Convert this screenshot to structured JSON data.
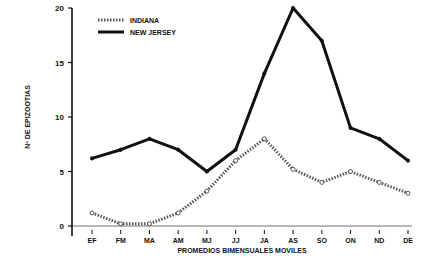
{
  "chart_data": {
    "type": "line",
    "x_label": "PROMEDIOS BIMENSUALES MOVILES",
    "y_label": "Nº DE EPIZOOTIAS",
    "categories": [
      "EF",
      "FM",
      "MA",
      "AM",
      "MJ",
      "JJ",
      "JA",
      "AS",
      "SO",
      "ON",
      "ND",
      "DE"
    ],
    "series": [
      {
        "name": "INDIANA",
        "color": "#555555",
        "line_style": "dotted",
        "marker": "circle",
        "values": [
          1.2,
          0.2,
          0.2,
          1.2,
          3.2,
          6,
          8,
          5.2,
          4,
          5,
          4,
          3
        ]
      },
      {
        "name": "NEW JERSEY",
        "color": "#111111",
        "line_style": "solid",
        "marker": "circle",
        "values": [
          6.2,
          7,
          8,
          7,
          5,
          7,
          14,
          20,
          17,
          9,
          8,
          6
        ]
      }
    ],
    "ylim": [
      0,
      20
    ],
    "yticks": [
      0,
      5,
      10,
      15,
      20
    ],
    "grid": false,
    "legend": "upper left"
  }
}
